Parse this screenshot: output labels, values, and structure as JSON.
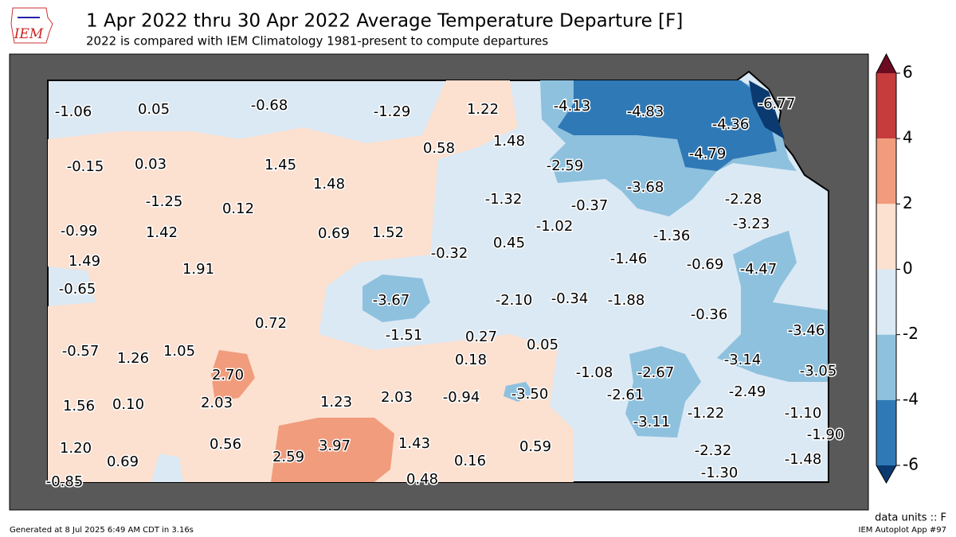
{
  "header": {
    "logo": "IEM",
    "title": "1 Apr 2022 thru 30 Apr 2022 Average Temperature Departure [F]",
    "subtitle": "2022 is compared with IEM Climatology 1981-present to compute departures"
  },
  "stations": [
    "-1.06",
    "0.05",
    "-0.68",
    "-1.29",
    "1.22",
    "-4.13",
    "-4.83",
    "-6.77",
    "-4.36",
    "0.58",
    "1.48",
    "-0.15",
    "0.03",
    "1.45",
    "-2.59",
    "-4.79",
    "1.48",
    "-3.68",
    "-2.28",
    "-1.25",
    "0.12",
    "-1.32",
    "-0.37",
    "-3.23",
    "-0.99",
    "1.42",
    "0.69",
    "1.52",
    "-1.02",
    "-1.36",
    "1.49",
    "0.45",
    "-0.32",
    "-1.46",
    "-0.69",
    "-4.47",
    "1.91",
    "-0.65",
    "-3.67",
    "-2.10",
    "-0.34",
    "-1.88",
    "-0.36",
    "0.72",
    "-3.46",
    "-0.57",
    "1.26",
    "1.05",
    "-1.51",
    "0.27",
    "0.05",
    "0.18",
    "-3.14",
    "2.70",
    "-1.08",
    "-2.67",
    "-3.05",
    "2.03",
    "1.23",
    "2.03",
    "-0.94",
    "-3.50",
    "-2.61",
    "-2.49",
    "1.56",
    "0.10",
    "-3.11",
    "-1.22",
    "-1.10",
    "-1.90",
    "0.56",
    "2.59",
    "3.97",
    "1.43",
    "0.59",
    "1.20",
    "0.69",
    "0.16",
    "-2.32",
    "-1.48",
    "-1.30",
    "-0.85",
    "0.48"
  ],
  "colorbar": {
    "ticks": [
      6,
      4,
      2,
      0,
      -2,
      -4,
      -6
    ],
    "colors": [
      "#c63b3b",
      "#f19c7c",
      "#fce0d0",
      "#dbe9f4",
      "#8ec1de",
      "#2f79b6"
    ],
    "extend_colors": [
      "#6b0c22",
      "#0a3a70"
    ]
  },
  "footer": {
    "units": "data units :: F",
    "generated": "Generated at 8 Jul 2025 6:49 AM CDT in 3.16s",
    "app": "IEM Autoplot App #97"
  }
}
